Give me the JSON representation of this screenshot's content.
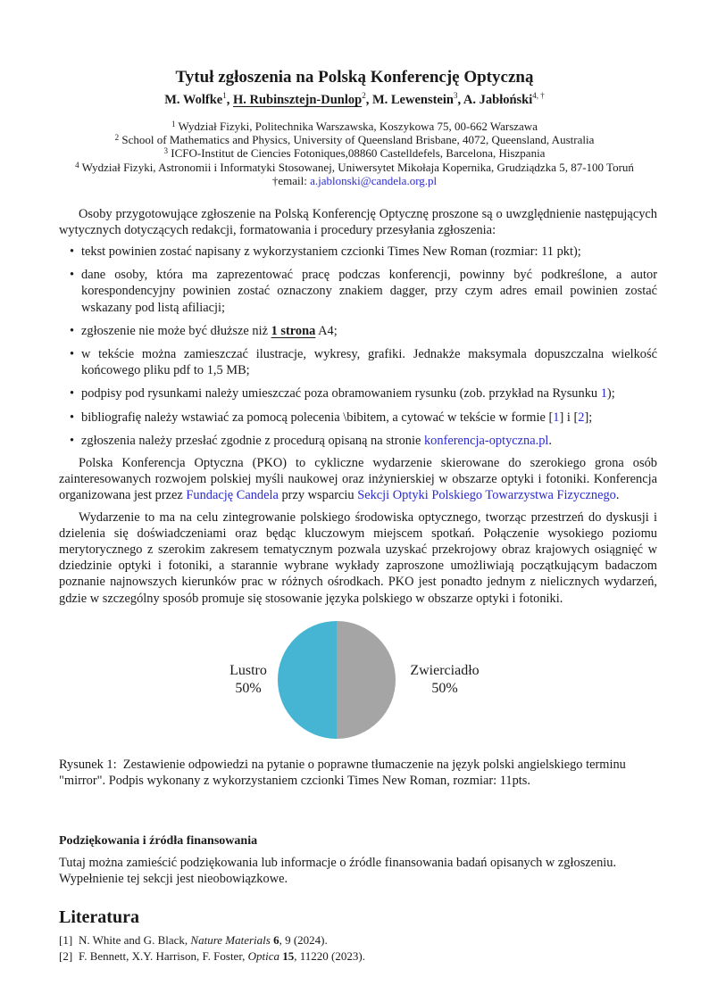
{
  "title": "Tytuł zgłoszenia na Polską Konferencję Optyczną",
  "authors": [
    {
      "name": "M. Wolfke",
      "sup": "1",
      "sep": ", "
    },
    {
      "name": "H. Rubinsztejn-Dunlop",
      "sup": "2",
      "sep": ", "
    },
    {
      "name": "M. Lewenstein",
      "sup": "3",
      "sep": ", "
    },
    {
      "name": "A. Jabłoński",
      "sup": "4, †",
      "sep": ""
    }
  ],
  "affiliations": [
    {
      "num": "1",
      "text": "Wydział Fizyki, Politechnika Warszawska, Koszykowa 75, 00-662 Warszawa"
    },
    {
      "num": "2",
      "text": "School of Mathematics and Physics, University of Queensland Brisbane, 4072, Queensland, Australia"
    },
    {
      "num": "3",
      "text": "ICFO-Institut de Ciencies Fotoniques,08860 Castelldefels, Barcelona, Hiszpania"
    },
    {
      "num": "4",
      "text": "Wydział Fizyki, Astronomii i Informatyki Stosowanej, Uniwersytet Mikołaja Kopernika, Grudziądzka 5, 87-100 Toruń"
    }
  ],
  "email": {
    "prefix": "†email: ",
    "address": "a.jablonski@candela.org.pl"
  },
  "intro": "Osoby przygotowujące zgłoszenie na Polską Konferencję Optycznę proszone są o uwzględnienie następujących wytycznych dotyczących redakcji, formatowania i procedury przesyłania zgłoszenia:",
  "bullets": {
    "b1": "tekst powinien zostać napisany z wykorzystaniem czcionki Times New Roman (rozmiar: 11 pkt);",
    "b2": "dane osoby, która ma zaprezentować pracę podczas konferencji, powinny być podkreślone, a autor korespondencyjny powinien zostać oznaczony znakiem dagger, przy czym adres email powinien zostać wskazany pod listą afiliacji;",
    "b3_pre": "zgłoszenie nie może być dłuższe niż ",
    "b3_bold": "1 strona",
    "b3_post": " A4;",
    "b4": "w tekście można zamieszczać ilustracje, wykresy, grafiki. Jednakże maksymala dopuszczalna wielkość końcowego pliku pdf to 1,5 MB;",
    "b5_pre": "podpisy pod rysunkami należy umieszczać poza obramowaniem rysunku (zob. przykład na Rysunku ",
    "b5_link": "1",
    "b5_post": ");",
    "b6_pre": "bibliografię należy wstawiać za pomocą polecenia \\bibitem, a cytować w tekście w formie [",
    "b6_l1": "1",
    "b6_mid": "] i [",
    "b6_l2": "2",
    "b6_post": "];",
    "b7_pre": "zgłoszenia należy przesłać zgodnie z procedurą opisaną na stronie ",
    "b7_link": "konferencja-optyczna.pl",
    "b7_post": "."
  },
  "para2": {
    "pre": "Polska Konferencja Optyczna (PKO) to cykliczne wydarzenie skierowane do szerokiego grona osób zainteresowanych rozwojem polskiej myśli naukowej oraz inżynierskiej w obszarze optyki i fotoniki. Konferencja organizowana jest przez ",
    "link1": "Fundację Candela",
    "mid": " przy wsparciu ",
    "link2": "Sekcji Optyki Polskiego Towarzystwa Fizycznego",
    "post": "."
  },
  "para3": "Wydarzenie to ma na celu zintegrowanie polskiego środowiska optycznego, tworząc przestrzeń do dyskusji i dzielenia się doświadczeniami oraz będąc kluczowym miejscem spotkań. Połączenie wysokiego poziomu merytorycznego z szerokim zakresem tematycznym pozwala uzyskać przekrojowy obraz krajowych osiągnięć w dziedzinie optyki i fotoniki, a starannie wybrane wykłady zaproszone umożliwiają początkującym badaczom poznanie najnowszych kierunków prac w różnych ośrodkach. PKO jest ponadto jednym z nielicznych wydarzeń, gdzie w szczególny sposób promuje się stosowanie języka polskiego w obszarze optyki i fotoniki.",
  "chart_data": {
    "type": "pie",
    "labels": [
      "Lustro",
      "Zwierciadło"
    ],
    "values": [
      50,
      50
    ],
    "value_labels": [
      "50%",
      "50%"
    ],
    "colors": [
      "#45b5d3",
      "#a5a5a5"
    ]
  },
  "caption": {
    "label": "Rysunek 1:",
    "text": "Zestawienie odpowiedzi na pytanie o poprawne tłumaczenie na język polski angielskiego terminu \"mirror\". Podpis wykonany z wykorzystaniem czcionki Times New Roman, rozmiar: 11pts."
  },
  "acknowledgements": {
    "heading": "Podziękowania i źródła finansowania",
    "text": "Tutaj można zamieścić podziękowania lub informacje o źródle finansowania badań opisanych w zgłoszeniu. Wypełnienie tej sekcji jest nieobowiązkowe."
  },
  "references": {
    "heading": "Literatura",
    "items": [
      {
        "num": "[1]",
        "authors": "N. White and G. Black, ",
        "journal": "Nature Materials",
        "volume": "6",
        "rest": ", 9 (2024)."
      },
      {
        "num": "[2]",
        "authors": "F. Bennett, X.Y. Harrison, F. Foster, ",
        "journal": "Optica",
        "volume": "15",
        "rest": ", 11220 (2023)."
      }
    ]
  }
}
